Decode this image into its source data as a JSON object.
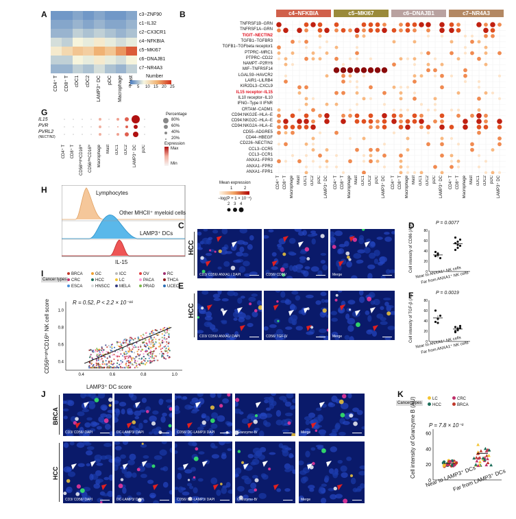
{
  "panels": {
    "A": "A",
    "B": "B",
    "C": "C",
    "D": "D",
    "E": "E",
    "F": "F",
    "G": "G",
    "H": "H",
    "I": "I",
    "J": "J",
    "K": "K"
  },
  "panelA": {
    "rows": [
      "c3−ZNF90",
      "c1−IL32",
      "c2−CX3CR1",
      "c4−NFKBIA",
      "c5−MKI67",
      "c6−DNAJB1",
      "c7−NR4A3"
    ],
    "cols": [
      "CD4⁺ T",
      "CD8⁺ T",
      "cDC1",
      "cDC2",
      "LAMP3⁺ DC",
      "pDC",
      "Macrophage",
      "Mast"
    ],
    "values": [
      [
        2,
        2,
        3,
        2,
        3,
        2,
        2,
        3
      ],
      [
        3,
        3,
        4,
        3,
        4,
        3,
        3,
        4
      ],
      [
        4,
        4,
        6,
        5,
        6,
        5,
        4,
        5
      ],
      [
        7,
        6,
        9,
        8,
        10,
        8,
        7,
        8
      ],
      [
        10,
        12,
        14,
        13,
        16,
        14,
        18,
        22
      ],
      [
        6,
        6,
        9,
        8,
        10,
        8,
        7,
        9
      ],
      [
        4,
        4,
        6,
        5,
        7,
        5,
        4,
        6
      ]
    ],
    "legend_title": "Number",
    "legend_ticks": [
      "0",
      "5",
      "10",
      "15",
      "20",
      "25"
    ]
  },
  "panelB": {
    "clusters": [
      {
        "name": "c4−NFKBIA",
        "color": "#d0604b"
      },
      {
        "name": "c5−MKI67",
        "color": "#9a8a3a"
      },
      {
        "name": "c6−DNAJB1",
        "color": "#b9a2a0"
      },
      {
        "name": "c7−NR4A3",
        "color": "#b38863"
      }
    ],
    "pairs": [
      "TNFRSF1B−GRN",
      "TNFRSF1A−GRN",
      "TIGIT−NECTIN2",
      "TGFB1−TGFBR3",
      "TGFB1−TGFbeta receptor1",
      "PTPRC−MRC1",
      "PTPRC−CD22",
      "NAMPT−P2RY6",
      "MIF−TNFRSF14",
      "LGALS9−HAVCR2",
      "LAIR1−LILRB4",
      "KIR2DL3−CXCL9",
      "IL15 receptor−IL15",
      "IL10 receptor−IL10",
      "IFNG−Type II IFNR",
      "CRTAM−CADM1",
      "CD94:NKG2E−HLA−E",
      "CD94:NKG2C−HLA−E",
      "CD94:NKG2A−HLA−E",
      "CD55−ADGRE5",
      "CD44−HBEGF",
      "CD226−NECTIN2",
      "CCL3−CCR5",
      "CCL3−CCR1",
      "ANXA1−FPR3",
      "ANXA1−FPR2",
      "ANXA1−FPR1"
    ],
    "highlighted": [
      "TIGIT−NECTIN2",
      "IL15 receptor−IL15"
    ],
    "col_labels": [
      "CD4⁺ T",
      "CD8⁺ T",
      "Macrophage",
      "Mast",
      "cDC1",
      "cDC2",
      "pDC",
      "LAMP3⁺ DC"
    ],
    "legend_title": "Mean expression",
    "legend_ticks": [
      "1",
      "2"
    ],
    "size_title": "−log(P + 1 × 10⁻⁴)",
    "size_ticks": [
      "2",
      "3",
      "4"
    ]
  },
  "panelG": {
    "genes": [
      "IL15",
      "PVR",
      "PVRL2"
    ],
    "gene_note": "(NECTIN2)",
    "cols": [
      "CD4⁺ T",
      "CD8⁺ T",
      "CD56ᵇʳⁱᵍʰᵗCD16ᴴⁱ",
      "CD56ᵈⁱᵐCD16ʰⁱ",
      "Macrophage",
      "Mast",
      "cDC1",
      "cDC2",
      "LAMP3⁺ DC",
      "pDC"
    ],
    "legend_title": "Percentage",
    "pct_ticks": [
      "80%",
      "60%",
      "40%",
      "20%"
    ],
    "expr_title": "Expression",
    "expr_max": "Max",
    "expr_min": "Min"
  },
  "panelH": {
    "labels": [
      "Lymphocytes",
      "Other MHCII⁺ myeloid cells",
      "LAMP3⁺ DCs"
    ],
    "xlabel": "IL-15"
  },
  "panelI": {
    "legend_title": "Cancer types",
    "types": [
      {
        "name": "BRCA",
        "color": "#c0392b"
      },
      {
        "name": "GC",
        "color": "#f0a030"
      },
      {
        "name": "ICC",
        "color": "#bbbbbb"
      },
      {
        "name": "OV",
        "color": "#e04040"
      },
      {
        "name": "RC",
        "color": "#a03070"
      },
      {
        "name": "CRC",
        "color": "#c0306a"
      },
      {
        "name": "HCC",
        "color": "#1d6e5a"
      },
      {
        "name": "LC",
        "color": "#f4c430"
      },
      {
        "name": "PACA",
        "color": "#ff9ad5"
      },
      {
        "name": "THCA",
        "color": "#8b1a1a"
      },
      {
        "name": "ESCA",
        "color": "#4a90d9"
      },
      {
        "name": "HNSCC",
        "color": "#d9d9d9"
      },
      {
        "name": "MELA",
        "color": "#333a80"
      },
      {
        "name": "PRAD",
        "color": "#7ab648"
      },
      {
        "name": "UCEC",
        "color": "#2a6eb5"
      }
    ],
    "stat": "R = 0.52, P < 2.2 × 10⁻¹⁶",
    "ylabel": "CD56ᵇʳⁱᵍʰᵗCD16ʰⁱ NK cell score",
    "xlabel": "LAMP3⁺ DC score",
    "xticks": [
      "0.4",
      "0.6",
      "0.8",
      "1.0"
    ],
    "yticks": [
      "0.4",
      "0.6",
      "0.8",
      "1.0"
    ]
  },
  "panelC": {
    "tissue": "HCC",
    "captions": [
      "CD3/ CD56/ ANXA1 / DAPI",
      "CD56/ CD86/",
      "Merge"
    ]
  },
  "panelE": {
    "tissue": "HCC",
    "captions": [
      "CD3/ CD56/ ANXA1/ DAPI",
      "CD56/ TGF-β/",
      "Merge"
    ]
  },
  "panelD": {
    "p": "P = 0.0077",
    "ylabel": "Cell intensity of CD86 (AU)",
    "yticks": [
      "80",
      "60",
      "40",
      "20",
      "0"
    ],
    "groups": [
      "Near to ANXA1⁺ NK cells",
      "Far from ANXA1⁺ NK cells"
    ],
    "near": [
      30,
      35,
      26,
      38,
      32
    ],
    "far": [
      42,
      46,
      50,
      55,
      58,
      62,
      66,
      52
    ]
  },
  "panelF": {
    "p": "P = 0.0019",
    "ylabel": "Cell intensity of TGF-β (AU)",
    "yticks": [
      "80",
      "60",
      "40",
      "20",
      "0"
    ],
    "groups": [
      "Near to ANXA1⁺ NK cells",
      "Far from ANXA1⁺ NK cells"
    ],
    "near": [
      38,
      44,
      50,
      60,
      36
    ],
    "far": [
      20,
      24,
      26,
      28,
      22,
      30,
      18,
      25
    ]
  },
  "panelJ": {
    "rows": [
      "BRCA",
      "HCC"
    ],
    "captions": [
      "CD3/ CD56/ DAPI",
      "DC-LAMP3/ DAPI",
      "CD56/ DC-LAMP3/ DAPI",
      "Granzyme-B/",
      "Merge"
    ]
  },
  "panelK": {
    "legend_title": "Cancer types",
    "types": [
      {
        "name": "LC",
        "color": "#f4c430"
      },
      {
        "name": "CRC",
        "color": "#c0306a"
      },
      {
        "name": "HCC",
        "color": "#1d6e5a"
      },
      {
        "name": "BRCA",
        "color": "#c0392b"
      }
    ],
    "p": "P = 7.8 × 10⁻⁶",
    "ylabel": "Cell intensity of Granzyme B (AU)",
    "yticks": [
      "60",
      "40",
      "20",
      "0"
    ],
    "groups": [
      "Near to LAMP3⁺ DCs",
      "Far from LAMP3⁺ DCs"
    ]
  }
}
